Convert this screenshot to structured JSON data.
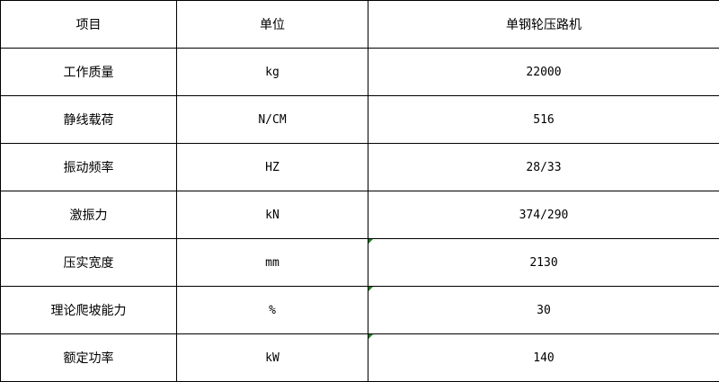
{
  "header": [
    "项目",
    "单位",
    "单钢轮压路机"
  ],
  "rows": [
    {
      "item": "工作质量",
      "unit": "kg",
      "value": "22000",
      "text_number_flag": false
    },
    {
      "item": "静线载荷",
      "unit": "N/CM",
      "value": "516",
      "text_number_flag": false
    },
    {
      "item": "振动频率",
      "unit": "HZ",
      "value": "28/33",
      "text_number_flag": false
    },
    {
      "item": "激振力",
      "unit": "kN",
      "value": "374/290",
      "text_number_flag": false
    },
    {
      "item": "压实宽度",
      "unit": "mm",
      "value": "2130",
      "text_number_flag": true
    },
    {
      "item": "理论爬坡能力",
      "unit": "%",
      "value": "30",
      "text_number_flag": true
    },
    {
      "item": "额定功率",
      "unit": "kW",
      "value": "140",
      "text_number_flag": true
    }
  ],
  "colors": {
    "border": "#000000",
    "flag": "#1a7f1a"
  }
}
